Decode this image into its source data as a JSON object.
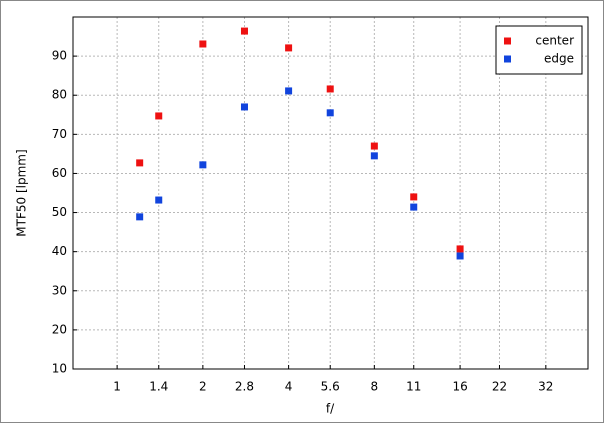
{
  "chart_data": {
    "type": "scatter",
    "xlabel": "f/",
    "ylabel": "MTF50 [lpmm]",
    "xscale": "log",
    "xlim": [
      0.7,
      45
    ],
    "ylim": [
      10,
      100
    ],
    "xticks": [
      1,
      1.4,
      2,
      2.8,
      4,
      5.6,
      8,
      11,
      16,
      22,
      32
    ],
    "yticks": [
      10,
      20,
      30,
      40,
      50,
      60,
      70,
      80,
      90
    ],
    "grid": true,
    "legend": "upper right",
    "x": [
      1.2,
      1.4,
      2,
      2.8,
      4,
      5.6,
      8,
      11,
      16
    ],
    "series": [
      {
        "name": "center",
        "color": "#ee1111",
        "values": [
          62.7,
          74.7,
          93.1,
          96.4,
          92.1,
          81.6,
          67,
          54,
          40.7
        ]
      },
      {
        "name": "edge",
        "color": "#1144dd",
        "values": [
          48.9,
          53.2,
          62.2,
          77,
          81.1,
          75.5,
          64.5,
          51.4,
          38.9
        ]
      }
    ]
  }
}
